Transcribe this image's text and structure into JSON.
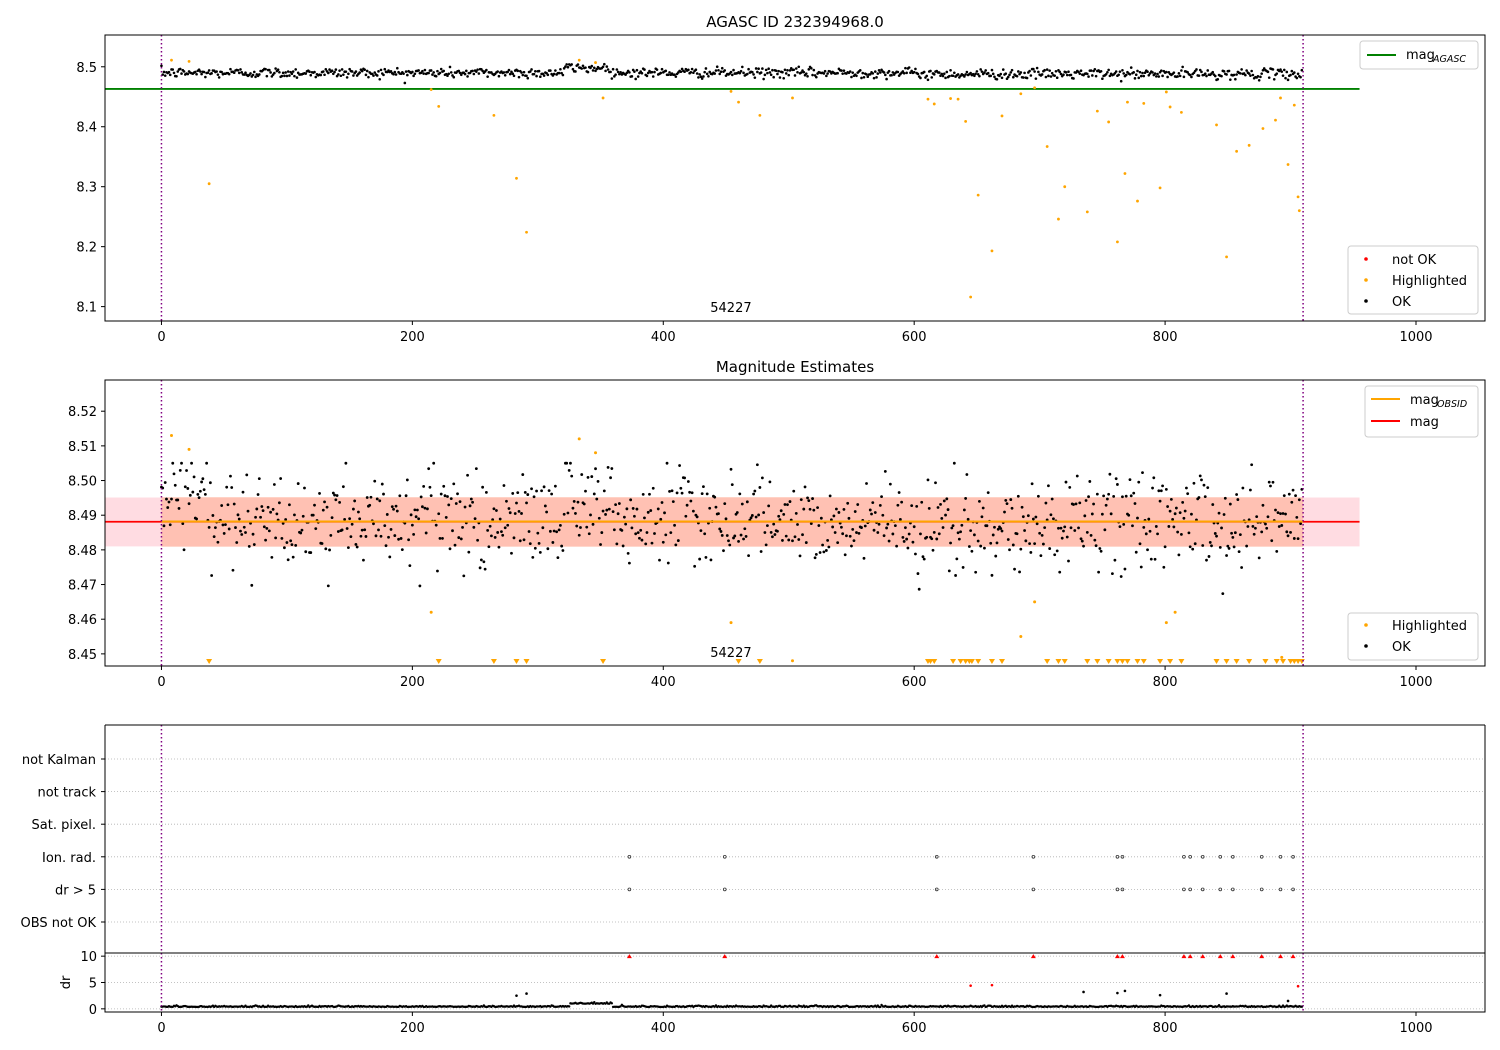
{
  "colors": {
    "ok": "#000000",
    "highlighted": "#ffa500",
    "not_ok": "#ff0000",
    "mag_agasc": "#008000",
    "mag_obsid": "#ffa500",
    "mag": "#ff0000",
    "obs_boundary": "#800080",
    "band_obsid": "#ffa07a",
    "band_mag": "#ffc0cb",
    "grid": "#b0b0b0"
  },
  "chart_data": [
    {
      "id": "agasc",
      "type": "scatter",
      "title": "AGASC ID 232394968.0",
      "xlabel": "",
      "ylabel": "",
      "xlim": [
        -45,
        1055
      ],
      "ylim": [
        8.076,
        8.553
      ],
      "xticks": [
        "0",
        "200",
        "400",
        "600",
        "800",
        "1000"
      ],
      "yticks": [
        "8.1",
        "8.2",
        "8.3",
        "8.4",
        "8.5"
      ],
      "obsid_annotation": {
        "x": 455,
        "text": "54227"
      },
      "obs_boundaries": [
        0,
        910
      ],
      "hlines": [
        {
          "name": "mag_AGASC",
          "y": 8.463,
          "x_range": [
            -45,
            955
          ]
        }
      ],
      "ok_series": {
        "name": "OK",
        "n": 910,
        "center": 8.49,
        "spread": 0.006
      },
      "highlighted": [
        [
          8,
          8.511
        ],
        [
          22,
          8.509
        ],
        [
          38,
          8.305
        ],
        [
          215,
          8.462
        ],
        [
          221,
          8.434
        ],
        [
          265,
          8.419
        ],
        [
          283,
          8.314
        ],
        [
          291,
          8.224
        ],
        [
          333,
          8.511
        ],
        [
          346,
          8.507
        ],
        [
          352,
          8.448
        ],
        [
          454,
          8.459
        ],
        [
          460,
          8.441
        ],
        [
          477,
          8.419
        ],
        [
          503,
          8.448
        ],
        [
          611,
          8.446
        ],
        [
          616,
          8.438
        ],
        [
          629,
          8.447
        ],
        [
          635,
          8.446
        ],
        [
          641,
          8.409
        ],
        [
          645,
          8.116
        ],
        [
          651,
          8.286
        ],
        [
          662,
          8.193
        ],
        [
          670,
          8.418
        ],
        [
          685,
          8.455
        ],
        [
          696,
          8.465
        ],
        [
          706,
          8.367
        ],
        [
          715,
          8.246
        ],
        [
          720,
          8.3
        ],
        [
          738,
          8.258
        ],
        [
          746,
          8.426
        ],
        [
          755,
          8.408
        ],
        [
          762,
          8.208
        ],
        [
          768,
          8.322
        ],
        [
          770,
          8.441
        ],
        [
          778,
          8.276
        ],
        [
          783,
          8.439
        ],
        [
          796,
          8.298
        ],
        [
          801,
          8.458
        ],
        [
          804,
          8.433
        ],
        [
          813,
          8.424
        ],
        [
          841,
          8.403
        ],
        [
          849,
          8.183
        ],
        [
          857,
          8.359
        ],
        [
          867,
          8.369
        ],
        [
          878,
          8.397
        ],
        [
          888,
          8.411
        ],
        [
          892,
          8.448
        ],
        [
          898,
          8.337
        ],
        [
          903,
          8.436
        ],
        [
          906,
          8.283
        ],
        [
          907,
          8.26
        ]
      ],
      "legends": [
        {
          "position": "upper right",
          "items": [
            {
              "label": "mag",
              "sub": "AGASC",
              "kind": "line",
              "color_key": "mag_agasc"
            }
          ]
        },
        {
          "position": "lower right",
          "items": [
            {
              "label": "not OK",
              "kind": "dot",
              "color_key": "not_ok"
            },
            {
              "label": "Highlighted",
              "kind": "dot",
              "color_key": "highlighted"
            },
            {
              "label": "OK",
              "kind": "dot",
              "color_key": "ok"
            }
          ]
        }
      ]
    },
    {
      "id": "estimates",
      "type": "scatter",
      "title": "Magnitude Estimates",
      "xlabel": "",
      "ylabel": "",
      "xlim": [
        -45,
        1055
      ],
      "ylim": [
        8.4465,
        8.529
      ],
      "xticks": [
        "0",
        "200",
        "400",
        "600",
        "800",
        "1000"
      ],
      "yticks": [
        "8.45",
        "8.46",
        "8.47",
        "8.48",
        "8.49",
        "8.50",
        "8.51",
        "8.52"
      ],
      "obsid_annotation": {
        "x": 455,
        "text": "54227"
      },
      "obs_boundaries": [
        0,
        910
      ],
      "lines": [
        {
          "name": "mag_OBSID",
          "y": 8.4882,
          "x_range": [
            0,
            910
          ],
          "band": [
            8.4809,
            8.4952
          ]
        },
        {
          "name": "mag",
          "y": 8.4881,
          "x_range": [
            -45,
            955
          ],
          "band": [
            8.481,
            8.4951
          ]
        }
      ],
      "ok_series": {
        "name": "OK",
        "n": 910,
        "center": 8.488,
        "spread": 0.0065
      },
      "highlighted": [
        [
          8,
          8.513
        ],
        [
          22,
          8.509
        ],
        [
          215,
          8.462
        ],
        [
          333,
          8.512
        ],
        [
          346,
          8.508
        ],
        [
          454,
          8.459
        ],
        [
          696,
          8.465
        ],
        [
          685,
          8.455
        ],
        [
          801,
          8.459
        ],
        [
          808,
          8.462
        ],
        [
          503,
          8.448
        ],
        [
          893,
          8.449
        ]
      ],
      "lower_limit_markers": [
        38,
        221,
        265,
        283,
        291,
        352,
        460,
        477,
        611,
        613,
        616,
        631,
        637,
        641,
        644,
        646,
        651,
        662,
        670,
        706,
        715,
        720,
        738,
        746,
        755,
        762,
        766,
        770,
        778,
        783,
        796,
        804,
        813,
        841,
        849,
        857,
        867,
        880,
        889,
        894,
        900,
        903,
        906,
        909
      ],
      "legends": [
        {
          "position": "upper right",
          "items": [
            {
              "label": "mag",
              "sub": "OBSID",
              "kind": "line",
              "color_key": "mag_obsid"
            },
            {
              "label": "mag",
              "sub": "",
              "kind": "line",
              "color_key": "mag"
            }
          ]
        },
        {
          "position": "lower right",
          "items": [
            {
              "label": "Highlighted",
              "kind": "dot",
              "color_key": "highlighted"
            },
            {
              "label": "OK",
              "kind": "dot",
              "color_key": "ok"
            }
          ]
        }
      ]
    },
    {
      "id": "flags",
      "type": "scatter",
      "title": "",
      "xlabel": "",
      "ylabel": "",
      "xlim": [
        -45,
        1055
      ],
      "xticks": [],
      "categories": [
        "not Kalman",
        "not track",
        "Sat. pixel.",
        "Ion. rad.",
        "dr > 5",
        "OBS not OK"
      ],
      "obs_boundaries": [
        0,
        910
      ],
      "flag_points": {
        "Ion. rad.": [
          373,
          449,
          618,
          695,
          762,
          766,
          815,
          820,
          830,
          844,
          854,
          877,
          892,
          902
        ],
        "dr > 5": [
          373,
          449,
          618,
          695,
          762,
          766,
          815,
          820,
          830,
          844,
          854,
          877,
          892,
          902
        ]
      }
    },
    {
      "id": "dr",
      "type": "scatter",
      "title": "",
      "xlabel": "",
      "ylabel": "dr",
      "xlim": [
        -45,
        1055
      ],
      "ylim": [
        -0.6,
        10.6
      ],
      "xticks": [
        "0",
        "200",
        "400",
        "600",
        "800",
        "1000"
      ],
      "yticks": [
        "0",
        "5",
        "10"
      ],
      "obs_boundaries": [
        0,
        910
      ],
      "ok_series": {
        "name": "OK",
        "n": 910,
        "center": 0.35,
        "spread": 0.15
      },
      "outliers": [
        [
          283,
          2.5
        ],
        [
          291,
          2.9
        ],
        [
          645,
          4.4
        ],
        [
          662,
          4.5
        ],
        [
          735,
          3.2
        ],
        [
          762,
          3.0
        ],
        [
          768,
          3.4
        ],
        [
          796,
          2.6
        ],
        [
          849,
          2.9
        ],
        [
          898,
          1.5
        ],
        [
          906,
          4.3
        ]
      ],
      "clipped_markers": [
        373,
        449,
        618,
        695,
        762,
        766,
        815,
        820,
        830,
        844,
        854,
        877,
        892,
        902
      ]
    }
  ]
}
